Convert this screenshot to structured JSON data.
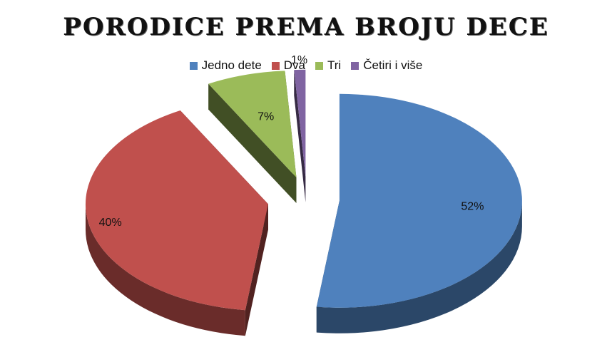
{
  "chart_data": {
    "type": "pie",
    "title": "PORODICE PREMA BROJU DECE",
    "legend_position": "top",
    "exploded": true,
    "three_d": true,
    "slices": [
      {
        "label": "Jedno dete",
        "value": 52,
        "value_label": "52%",
        "color": "#4F81BD"
      },
      {
        "label": "Dva",
        "value": 40,
        "value_label": "40%",
        "color": "#C0504D"
      },
      {
        "label": "Tri",
        "value": 7,
        "value_label": "7%",
        "color": "#9BBB59"
      },
      {
        "label": "Četiri i više",
        "value": 1,
        "value_label": "1%",
        "color": "#8064A2"
      }
    ]
  }
}
